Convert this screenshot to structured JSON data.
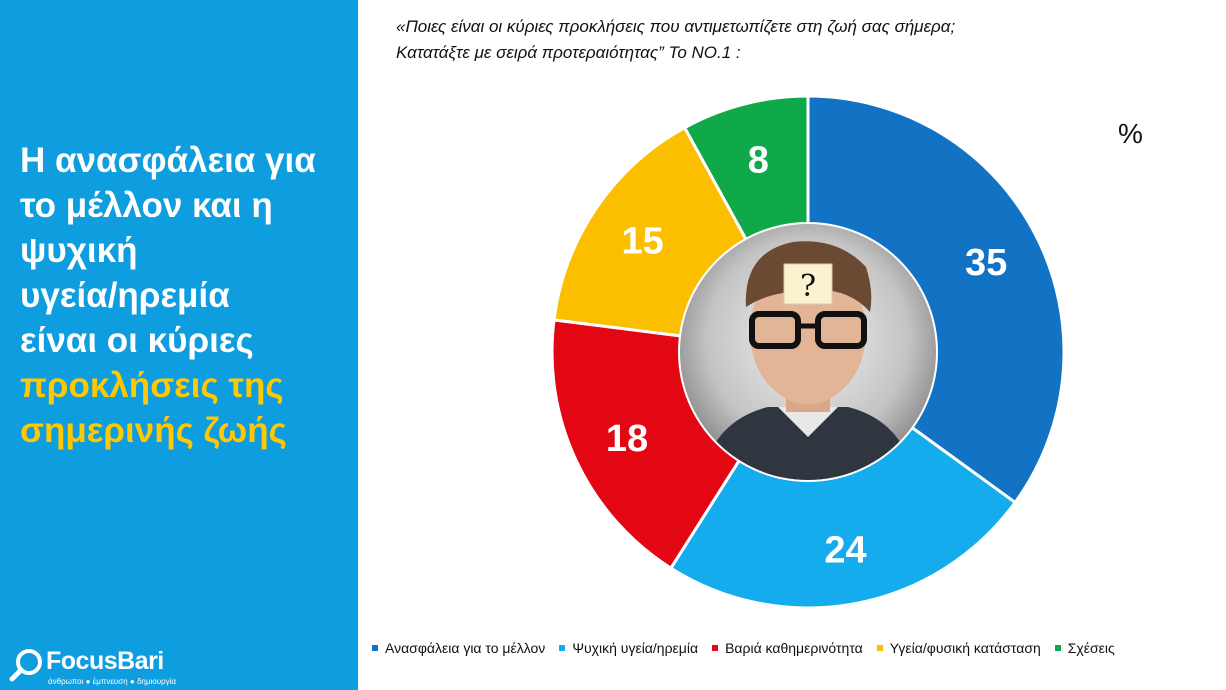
{
  "headline": {
    "lines": [
      "Η ανασφάλεια για",
      "το μέλλον και η",
      "ψυχική",
      "υγεία/ηρεμία",
      "είναι οι κύριες"
    ],
    "accent_lines": [
      "προκλήσεις της",
      "σημερινής ζωής"
    ],
    "accent_color": "#ffc800",
    "panel_color": "#0e9ee0"
  },
  "question": {
    "line1": "«Ποιες είναι οι κύριες προκλήσεις που αντιμετωπίζετε στη ζωή σας σήμερα;",
    "line2": "Κατατάξτε με σειρά προτεραιότητας” Το ΝΟ.1 :"
  },
  "unit": "%",
  "logo": {
    "name": "FocusBari",
    "tagline": "άνθρωποι ● έμπνευση ● δημιουργία",
    "icon": "magnifier-icon"
  },
  "center_image": "photo-young-man-with-glasses-question-mark",
  "center_image_label": "?",
  "chart_data": {
    "type": "pie",
    "donut": true,
    "title": "",
    "categories": [
      "Ανασφάλεια για το μέλλον",
      "Ψυχική υγεία/ηρεμία",
      "Βαριά καθημερινότητα",
      "Υγεία/φυσική κατάσταση",
      "Σχέσεις"
    ],
    "values": [
      35,
      24,
      18,
      15,
      8
    ],
    "colors": [
      "#1272c4",
      "#14acec",
      "#e30613",
      "#fbbf00",
      "#10a94a"
    ],
    "data_label_color": "#ffffff",
    "legend_position": "bottom"
  }
}
